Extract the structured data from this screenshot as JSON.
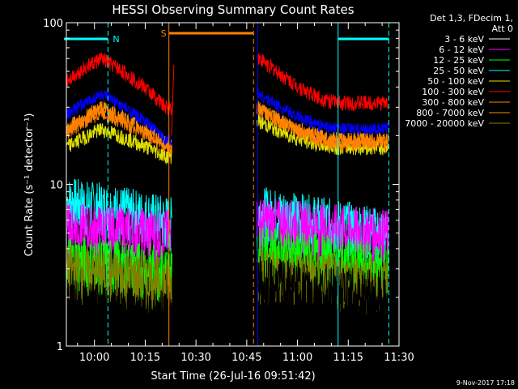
{
  "chart_data": {
    "type": "line",
    "title": "HESSI Observing Summary Count Rates",
    "xlabel": "Start Time (26-Jul-16 09:51:42)",
    "ylabel": "Count Rate (s⁻¹ detector⁻¹)",
    "yscale": "log",
    "ylim": [
      1,
      100
    ],
    "xlim_minutes_of_day": [
      591.7,
      690
    ],
    "x_ticks": [
      "10:00",
      "10:15",
      "10:30",
      "10:45",
      "11:00",
      "11:15",
      "11:30"
    ],
    "y_ticks": [
      "1",
      "10",
      "100"
    ],
    "legend_header": [
      "Det 1,3, FDecim 1,",
      "Att 0"
    ],
    "legend_position": "top-right",
    "footer_date": "9-Nov-2017 17:18",
    "grid": false,
    "flags": [
      {
        "label": "N",
        "color": "#00ffff",
        "segments": [
          [
            "09:51",
            "10:04"
          ],
          [
            "11:12",
            "11:27"
          ]
        ]
      },
      {
        "label": "S",
        "color": "#ff8000",
        "segments": [
          [
            "10:22",
            "10:47"
          ]
        ]
      }
    ],
    "data_gap": [
      "10:23",
      "10:48"
    ],
    "series": [
      {
        "name": "3 - 6 keV",
        "color": "#000000",
        "shape": "low-noise",
        "levels": {
          "start": 1.8,
          "mid": 1.5,
          "after": 2.5,
          "end": 2.0
        }
      },
      {
        "name": "6 - 12 keV",
        "color": "#ff00ff",
        "shape": "noise",
        "levels": {
          "start": 5.5,
          "mid": 5.0,
          "after": 6.0,
          "end": 5.0
        }
      },
      {
        "name": "12 - 25 keV",
        "color": "#00ff00",
        "shape": "noise",
        "levels": {
          "start": 3.5,
          "mid": 3.0,
          "after": 4.0,
          "end": 3.0
        }
      },
      {
        "name": "25 - 50 keV",
        "color": "#00ffff",
        "shape": "noise",
        "levels": {
          "start": 8.0,
          "mid": 6.0,
          "after": 7.0,
          "end": 5.0
        }
      },
      {
        "name": "50 - 100 keV",
        "color": "#e0e000",
        "shape": "dip",
        "levels": {
          "start": 17,
          "peak": 22,
          "mid": 15,
          "after": 25,
          "end": 17
        }
      },
      {
        "name": "100 - 300 keV",
        "color": "#ff0000",
        "shape": "dip",
        "levels": {
          "start": 44,
          "peak": 60,
          "mid": 30,
          "after": 62,
          "end": 32
        }
      },
      {
        "name": "300 - 800 keV",
        "color": "#ff8000",
        "shape": "dip",
        "levels": {
          "start": 21,
          "peak": 28,
          "mid": 17,
          "after": 30,
          "end": 18
        }
      },
      {
        "name": "800 - 7000 keV",
        "color": "#ff8c00",
        "shape": "dip",
        "levels": {
          "start": 22,
          "peak": 30,
          "mid": 18,
          "after": 30,
          "end": 19
        }
      },
      {
        "name": "7000 - 20000 keV",
        "color": "#808000",
        "shape": "noise",
        "levels": {
          "start": 3.0,
          "mid": 2.5,
          "after": 3.0,
          "end": 2.5
        }
      }
    ],
    "blue_series": {
      "name": "",
      "color": "#0000ff",
      "levels": {
        "start": 27,
        "peak": 36,
        "mid": 19,
        "after": 37,
        "end": 22
      }
    }
  }
}
